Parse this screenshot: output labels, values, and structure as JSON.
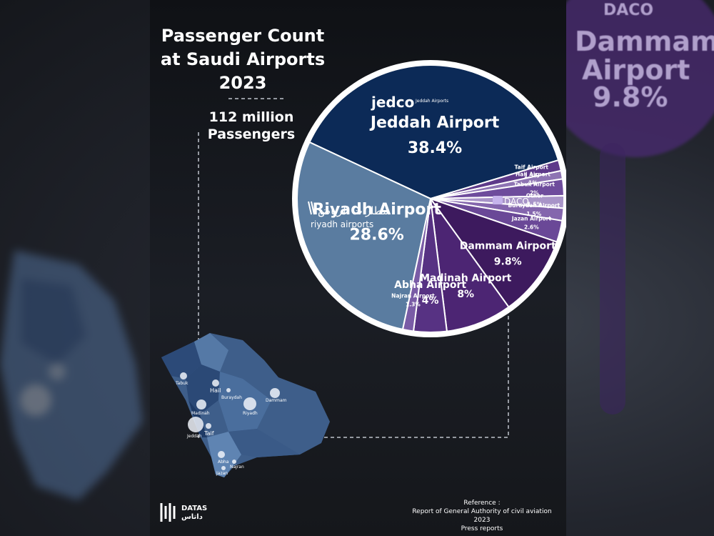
{
  "title": "Passenger Count at Saudi Airports 2023",
  "subtitle": "112 million Passengers",
  "chart_data": {
    "type": "pie",
    "title": "Passenger Count at Saudi Airports 2023",
    "slices": [
      {
        "name": "Jeddah Airport",
        "label": "38.4%",
        "value": 38.4,
        "color": "#0c2a57"
      },
      {
        "name": "Taif Airport",
        "label": "1.3%",
        "value": 1.3,
        "color": "#5e3a8a"
      },
      {
        "name": "Hail Airport",
        "label": "1%",
        "value": 1.0,
        "color": "#8e74b3"
      },
      {
        "name": "Tabuk Airport",
        "label": "2%",
        "value": 2.0,
        "color": "#6e4c9c"
      },
      {
        "name": "Other",
        "label": "1.5%",
        "value": 1.5,
        "color": "#a894c8"
      },
      {
        "name": "Buraydah Airport",
        "label": "1.5%",
        "value": 1.5,
        "color": "#8466ad"
      },
      {
        "name": "Jazan Airport",
        "label": "2.6%",
        "value": 2.6,
        "color": "#6a4897"
      },
      {
        "name": "Dammam Airport",
        "label": "9.8%",
        "value": 9.8,
        "color": "#3d1a5e"
      },
      {
        "name": "Madinah Airport",
        "label": "8%",
        "value": 8.0,
        "color": "#4c2573"
      },
      {
        "name": "Abha Airport",
        "label": "4%",
        "value": 4.0,
        "color": "#573283"
      },
      {
        "name": "Najran Airport",
        "label": "1.3%",
        "value": 1.3,
        "color": "#7a5ca6"
      },
      {
        "name": "Riyadh Airport",
        "label": "28.6%",
        "value": 28.6,
        "color": "#5a7ca0"
      }
    ]
  },
  "logos": {
    "jedco": "jedco",
    "jedco_sub": "Jeddah Airports",
    "riyadh_ar": "مطارات الرياض",
    "riyadh_en": "riyadh airports",
    "daco": "DACO"
  },
  "map_labels": {
    "tabuk": "Tabuk",
    "hail": "Hail",
    "buraydah": "Buraydah",
    "dammam": "Dammam",
    "madinah": "Madinah",
    "riyadh": "Riyadh",
    "jeddah": "Jeddah",
    "taif": "Taif",
    "abha": "Abha",
    "najran": "Najran",
    "jazan": "Jazan"
  },
  "footer": {
    "brand_en": "DATAS",
    "brand_ar": "داتاس",
    "ref_title": "Reference :",
    "ref_line1": "Report of General Authority of civil aviation 2023",
    "ref_line2": "Press reports"
  },
  "background": {
    "text1": "Dammam",
    "text2": "Airport",
    "text3": "9.8%",
    "daco": "DACO"
  }
}
